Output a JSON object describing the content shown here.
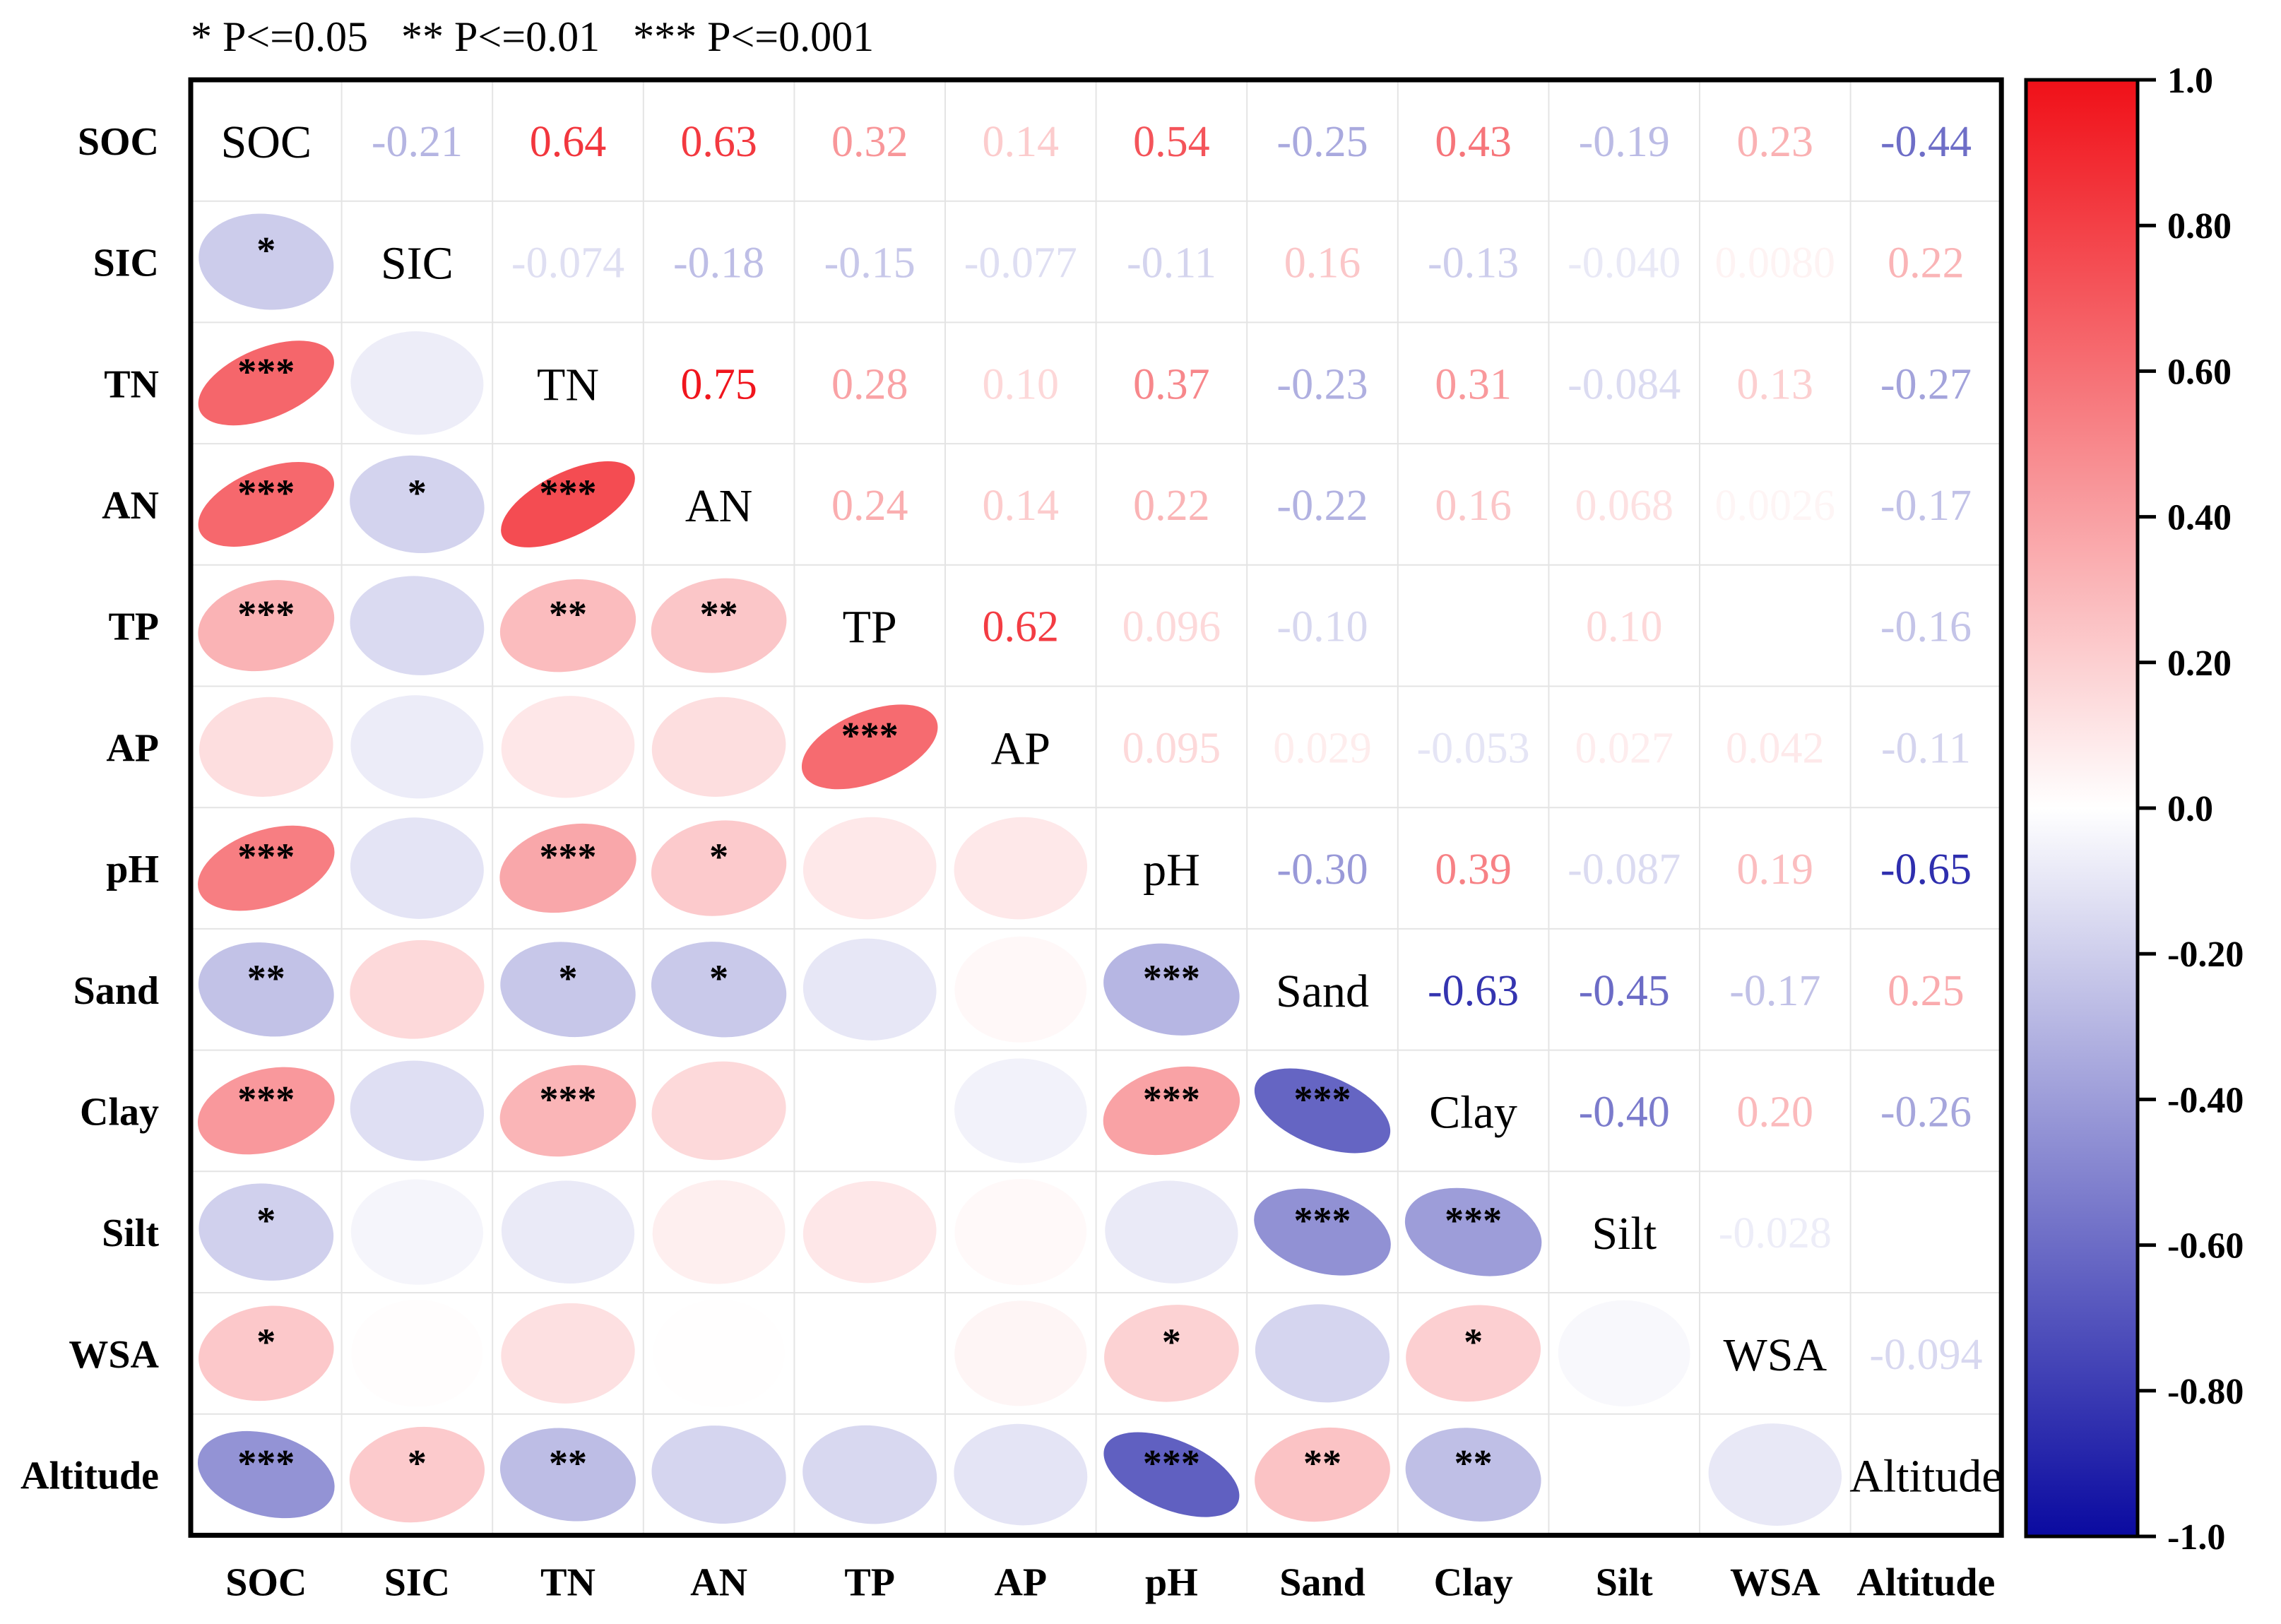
{
  "legend_note": {
    "p05": "* P<=0.05",
    "p01": "** P<=0.01",
    "p001": "*** P<=0.001"
  },
  "chart_data": {
    "type": "heatmap",
    "subtype": "correlation-matrix",
    "variables": [
      "SOC",
      "SIC",
      "TN",
      "AN",
      "TP",
      "AP",
      "pH",
      "Sand",
      "Clay",
      "Silt",
      "WSA",
      "Altitude"
    ],
    "upper_labels": [
      [
        "",
        "-0.21",
        "0.64",
        "0.63",
        "0.32",
        "0.14",
        "0.54",
        "-0.25",
        "0.43",
        "-0.19",
        "0.23",
        "-0.44"
      ],
      [
        "",
        "",
        "-0.074",
        "-0.18",
        "-0.15",
        "-0.077",
        "-0.11",
        "0.16",
        "-0.13",
        "-0.040",
        "0.0080",
        "0.22"
      ],
      [
        "",
        "",
        "",
        "0.75",
        "0.28",
        "0.10",
        "0.37",
        "-0.23",
        "0.31",
        "-0.084",
        "0.13",
        "-0.27"
      ],
      [
        "",
        "",
        "",
        "",
        "0.24",
        "0.14",
        "0.22",
        "-0.22",
        "0.16",
        "0.068",
        "0.0026",
        "-0.17"
      ],
      [
        "",
        "",
        "",
        "",
        "",
        "0.62",
        "0.096",
        "-0.10",
        "",
        "0.10",
        "",
        "-0.16"
      ],
      [
        "",
        "",
        "",
        "",
        "",
        "",
        "0.095",
        "0.029",
        "-0.053",
        "0.027",
        "0.042",
        "-0.11"
      ],
      [
        "",
        "",
        "",
        "",
        "",
        "",
        "",
        "-0.30",
        "0.39",
        "-0.087",
        "0.19",
        "-0.65"
      ],
      [
        "",
        "",
        "",
        "",
        "",
        "",
        "",
        "",
        "-0.63",
        "-0.45",
        "-0.17",
        "0.25"
      ],
      [
        "",
        "",
        "",
        "",
        "",
        "",
        "",
        "",
        "",
        "-0.40",
        "0.20",
        "-0.26"
      ],
      [
        "",
        "",
        "",
        "",
        "",
        "",
        "",
        "",
        "",
        "",
        "-0.028",
        ""
      ],
      [
        "",
        "",
        "",
        "",
        "",
        "",
        "",
        "",
        "",
        "",
        "",
        "-0.094"
      ],
      [
        "",
        "",
        "",
        "",
        "",
        "",
        "",
        "",
        "",
        "",
        "",
        ""
      ]
    ],
    "values": [
      [
        1,
        -0.21,
        0.64,
        0.63,
        0.32,
        0.14,
        0.54,
        -0.25,
        0.43,
        -0.19,
        0.23,
        -0.44
      ],
      [
        -0.21,
        1,
        -0.074,
        -0.18,
        -0.15,
        -0.077,
        -0.11,
        0.16,
        -0.13,
        -0.04,
        0.008,
        0.22
      ],
      [
        0.64,
        -0.074,
        1,
        0.75,
        0.28,
        0.1,
        0.37,
        -0.23,
        0.31,
        -0.084,
        0.13,
        -0.27
      ],
      [
        0.63,
        -0.18,
        0.75,
        1,
        0.24,
        0.14,
        0.22,
        -0.22,
        0.16,
        0.068,
        0.0026,
        -0.17
      ],
      [
        0.32,
        -0.15,
        0.28,
        0.24,
        1,
        0.62,
        0.096,
        -0.1,
        0.0,
        0.1,
        0.0,
        -0.16
      ],
      [
        0.14,
        -0.077,
        0.1,
        0.14,
        0.62,
        1,
        0.095,
        0.029,
        -0.053,
        0.027,
        0.042,
        -0.11
      ],
      [
        0.54,
        -0.11,
        0.37,
        0.22,
        0.096,
        0.095,
        1,
        -0.3,
        0.39,
        -0.087,
        0.19,
        -0.65
      ],
      [
        -0.25,
        0.16,
        -0.23,
        -0.22,
        -0.1,
        0.029,
        -0.3,
        1,
        -0.63,
        -0.45,
        -0.17,
        0.25
      ],
      [
        0.43,
        -0.13,
        0.31,
        0.16,
        0.0,
        -0.053,
        0.39,
        -0.63,
        1,
        -0.4,
        0.2,
        -0.26
      ],
      [
        -0.19,
        -0.04,
        -0.084,
        0.068,
        0.1,
        0.027,
        -0.087,
        -0.45,
        -0.4,
        1,
        -0.028,
        0.0
      ],
      [
        0.23,
        0.008,
        0.13,
        0.0026,
        0.0,
        0.042,
        0.19,
        -0.17,
        0.2,
        -0.028,
        1,
        -0.094
      ],
      [
        -0.44,
        0.22,
        -0.27,
        -0.17,
        -0.16,
        -0.11,
        -0.65,
        0.25,
        -0.26,
        0.0,
        -0.094,
        1
      ]
    ],
    "significance": [
      [
        "",
        "",
        "",
        "",
        "",
        "",
        "",
        "",
        "",
        "",
        "",
        ""
      ],
      [
        "*",
        "",
        "",
        "",
        "",
        "",
        "",
        "",
        "",
        "",
        "",
        ""
      ],
      [
        "***",
        "",
        "",
        "",
        "",
        "",
        "",
        "",
        "",
        "",
        "",
        ""
      ],
      [
        "***",
        "*",
        "***",
        "",
        "",
        "",
        "",
        "",
        "",
        "",
        "",
        ""
      ],
      [
        "***",
        "",
        "**",
        "**",
        "",
        "",
        "",
        "",
        "",
        "",
        "",
        ""
      ],
      [
        "",
        "",
        "",
        "",
        "***",
        "",
        "",
        "",
        "",
        "",
        "",
        ""
      ],
      [
        "***",
        "",
        "***",
        "*",
        "",
        "",
        "",
        "",
        "",
        "",
        "",
        ""
      ],
      [
        "**",
        "",
        "*",
        "*",
        "",
        "",
        "***",
        "",
        "",
        "",
        "",
        ""
      ],
      [
        "***",
        "",
        "***",
        "",
        "",
        "",
        "***",
        "***",
        "",
        "",
        "",
        ""
      ],
      [
        "*",
        "",
        "",
        "",
        "",
        "",
        "",
        "***",
        "***",
        "",
        "",
        ""
      ],
      [
        "*",
        "",
        "",
        "",
        "",
        "",
        "*",
        "",
        "*",
        "",
        "",
        ""
      ],
      [
        "***",
        "*",
        "**",
        "",
        "",
        "",
        "***",
        "**",
        "**",
        "",
        "",
        ""
      ]
    ],
    "lower_shown": [
      [
        0,
        0,
        0,
        0,
        0,
        0,
        0,
        0,
        0,
        0,
        0,
        0
      ],
      [
        1,
        0,
        0,
        0,
        0,
        0,
        0,
        0,
        0,
        0,
        0,
        0
      ],
      [
        1,
        1,
        0,
        0,
        0,
        0,
        0,
        0,
        0,
        0,
        0,
        0
      ],
      [
        1,
        1,
        1,
        0,
        0,
        0,
        0,
        0,
        0,
        0,
        0,
        0
      ],
      [
        1,
        1,
        1,
        1,
        0,
        0,
        0,
        0,
        0,
        0,
        0,
        0
      ],
      [
        1,
        1,
        1,
        1,
        1,
        0,
        0,
        0,
        0,
        0,
        0,
        0
      ],
      [
        1,
        1,
        1,
        1,
        1,
        1,
        0,
        0,
        0,
        0,
        0,
        0
      ],
      [
        1,
        1,
        1,
        1,
        1,
        1,
        1,
        0,
        0,
        0,
        0,
        0
      ],
      [
        1,
        1,
        1,
        1,
        0,
        1,
        1,
        1,
        0,
        0,
        0,
        0
      ],
      [
        1,
        1,
        1,
        1,
        1,
        1,
        1,
        1,
        1,
        0,
        0,
        0
      ],
      [
        1,
        1,
        1,
        1,
        0,
        1,
        1,
        1,
        1,
        1,
        0,
        0
      ],
      [
        1,
        1,
        1,
        1,
        1,
        1,
        1,
        1,
        1,
        0,
        1,
        0
      ]
    ],
    "color_scale": {
      "min": -1.0,
      "max": 1.0,
      "low_color": "#0a0aa0",
      "mid_color": "#ffffff",
      "high_color": "#f01018",
      "ticks": [
        1.0,
        0.8,
        0.6,
        0.4,
        0.2,
        0.0,
        -0.2,
        -0.4,
        -0.6,
        -0.8,
        -1.0
      ],
      "tick_labels": [
        "1.0",
        "0.80",
        "0.60",
        "0.40",
        "0.20",
        "0.0",
        "-0.20",
        "-0.40",
        "-0.60",
        "-0.80",
        "-1.0"
      ]
    },
    "legend_position": "right"
  }
}
